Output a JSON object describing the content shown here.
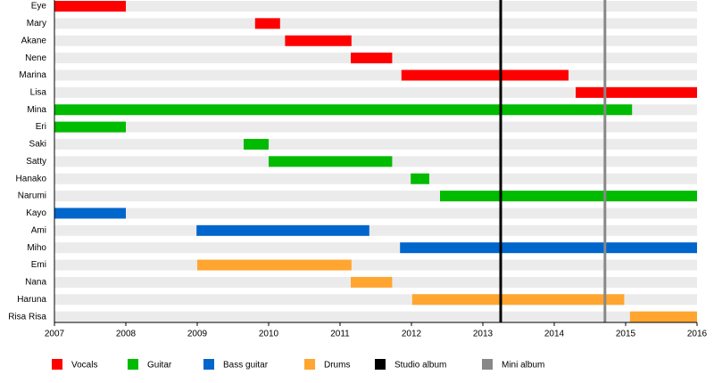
{
  "chart_data": {
    "type": "timeline",
    "categories": [
      "Eye",
      "Mary",
      "Akane",
      "Nene",
      "Marina",
      "Lisa",
      "Mina",
      "Eri",
      "Saki",
      "Satty",
      "Hanako",
      "Narumi",
      "Kayo",
      "Ami",
      "Miho",
      "Emi",
      "Nana",
      "Haruna",
      "Risa Risa"
    ],
    "series": [
      {
        "name": "Vocals",
        "color": "#ff0000",
        "start": [
          2007.0,
          2009.81,
          2010.23,
          2011.15,
          2011.86,
          2014.3,
          null,
          null,
          null,
          null,
          null,
          null,
          null,
          null,
          null,
          null,
          null,
          null,
          null
        ],
        "end": [
          2008.0,
          2010.16,
          2011.16,
          2011.73,
          2014.2,
          2016.0,
          null,
          null,
          null,
          null,
          null,
          null,
          null,
          null,
          null,
          null,
          null,
          null,
          null
        ]
      },
      {
        "name": "Guitar",
        "color": "#00bb00",
        "start": [
          null,
          null,
          null,
          null,
          null,
          null,
          2007.0,
          2007.0,
          2009.65,
          2010.0,
          2011.99,
          2012.4,
          null,
          null,
          null,
          null,
          null,
          null,
          null
        ],
        "end": [
          null,
          null,
          null,
          null,
          null,
          null,
          2015.09,
          2008.0,
          2010.0,
          2011.73,
          2012.25,
          2016.0,
          null,
          null,
          null,
          null,
          null,
          null,
          null
        ]
      },
      {
        "name": "Bass guitar",
        "color": "#0066cc",
        "start": [
          null,
          null,
          null,
          null,
          null,
          null,
          null,
          null,
          null,
          null,
          null,
          null,
          2007.0,
          2008.99,
          2011.84,
          null,
          null,
          null,
          null
        ],
        "end": [
          null,
          null,
          null,
          null,
          null,
          null,
          null,
          null,
          null,
          null,
          null,
          null,
          2008.0,
          2011.41,
          2016.0,
          null,
          null,
          null,
          null
        ]
      },
      {
        "name": "Drums",
        "color": "#ffa530",
        "start": [
          null,
          null,
          null,
          null,
          null,
          null,
          null,
          null,
          null,
          null,
          null,
          null,
          null,
          null,
          null,
          2009.0,
          2011.15,
          2012.01,
          2015.06
        ],
        "end": [
          null,
          null,
          null,
          null,
          null,
          null,
          null,
          null,
          null,
          null,
          null,
          null,
          null,
          null,
          null,
          2011.16,
          2011.73,
          2014.98,
          2016.0
        ]
      }
    ],
    "events": [
      {
        "name": "Studio album",
        "color": "#000000",
        "x": 2013.25
      },
      {
        "name": "Mini album",
        "color": "#888888",
        "x": 2014.71
      }
    ],
    "xlim": [
      2007,
      2016
    ],
    "xticks": [
      2007,
      2008,
      2009,
      2010,
      2011,
      2012,
      2013,
      2014,
      2015,
      2016
    ]
  }
}
